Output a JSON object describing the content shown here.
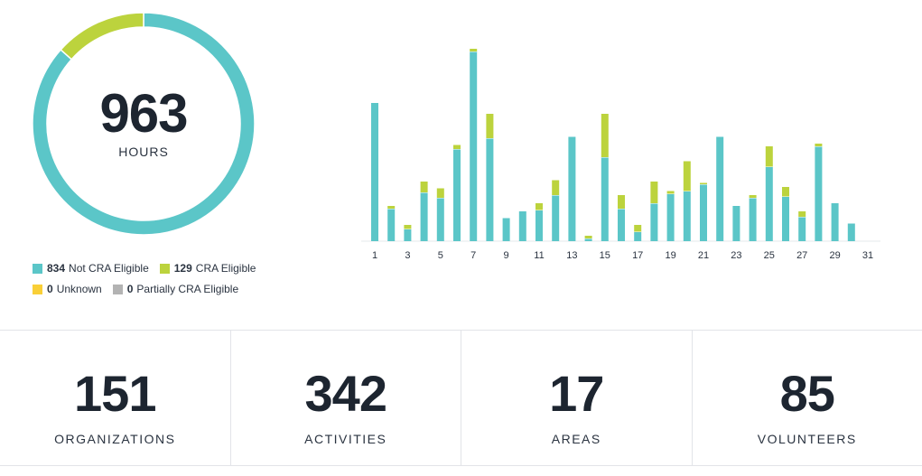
{
  "summary": {
    "total": "963",
    "unit": "HOURS"
  },
  "colors": {
    "not_cra": "#5bc6c8",
    "cra": "#bcd33d",
    "unknown": "#f9cf37",
    "partial": "#b3b3b3",
    "axis": "#e6e8eb"
  },
  "legend": [
    {
      "count": "834",
      "label": "Not CRA Eligible",
      "color_key": "not_cra"
    },
    {
      "count": "129",
      "label": "CRA Eligible",
      "color_key": "cra"
    },
    {
      "count": "0",
      "label": "Unknown",
      "color_key": "unknown"
    },
    {
      "count": "0",
      "label": "Partially CRA Eligible",
      "color_key": "partial"
    }
  ],
  "chart_data": [
    {
      "type": "pie",
      "categories": [
        "Not CRA Eligible",
        "CRA Eligible",
        "Unknown",
        "Partially CRA Eligible"
      ],
      "values": [
        834,
        129,
        0,
        0
      ]
    },
    {
      "type": "bar",
      "stacked": true,
      "x": [
        1,
        2,
        3,
        4,
        5,
        6,
        7,
        8,
        9,
        10,
        11,
        12,
        13,
        14,
        15,
        16,
        17,
        18,
        19,
        20,
        21,
        22,
        23,
        24,
        25,
        26,
        27,
        28,
        29,
        30,
        31
      ],
      "tick_labels": [
        "1",
        "3",
        "5",
        "7",
        "9",
        "11",
        "13",
        "15",
        "17",
        "19",
        "21",
        "23",
        "25",
        "27",
        "29",
        "31"
      ],
      "series": [
        {
          "name": "Not CRA Eligible",
          "values": [
            51,
            12,
            4.5,
            18,
            16,
            34,
            70,
            38,
            8.5,
            11,
            11.5,
            17,
            38.5,
            1,
            31,
            12,
            3.5,
            14,
            17.5,
            18.5,
            21,
            38.5,
            13,
            16,
            27.5,
            16.5,
            9,
            35,
            14,
            6.5,
            0
          ]
        },
        {
          "name": "CRA Eligible",
          "values": [
            0,
            1,
            1.5,
            4,
            3.5,
            1.5,
            1,
            9,
            0,
            0,
            2.5,
            5.5,
            0,
            1,
            16,
            5,
            2.5,
            8,
            1,
            11,
            0.5,
            0,
            0,
            1,
            7.5,
            3.5,
            2,
            1,
            0,
            0,
            0
          ]
        }
      ],
      "ylim": [
        0,
        72
      ]
    }
  ],
  "stats": [
    {
      "value": "151",
      "label": "ORGANIZATIONS"
    },
    {
      "value": "342",
      "label": "ACTIVITIES"
    },
    {
      "value": "17",
      "label": "AREAS"
    },
    {
      "value": "85",
      "label": "VOLUNTEERS"
    }
  ]
}
